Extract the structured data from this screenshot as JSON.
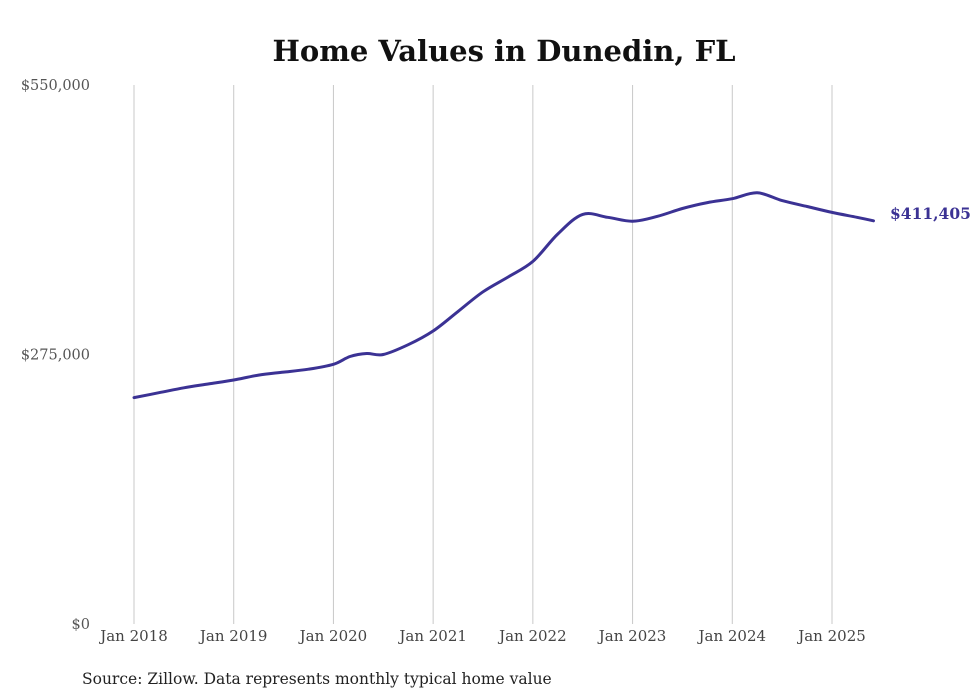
{
  "chart_data": {
    "type": "line",
    "title": "Home Values in Dunedin, FL",
    "xlabel": "",
    "ylabel": "",
    "ylim": [
      0,
      550000
    ],
    "xlim": [
      "2018-01",
      "2025-06"
    ],
    "yticks": [
      0,
      275000,
      550000
    ],
    "ytick_labels": [
      "$0",
      "$275,000",
      "$550,000"
    ],
    "xticks": [
      "2018-01",
      "2019-01",
      "2020-01",
      "2021-01",
      "2022-01",
      "2023-01",
      "2024-01",
      "2025-01"
    ],
    "xtick_labels": [
      "Jan 2018",
      "Jan 2019",
      "Jan 2020",
      "Jan 2021",
      "Jan 2022",
      "Jan 2023",
      "Jan 2024",
      "Jan 2025"
    ],
    "grid": "vertical",
    "color": "#3b3294",
    "end_label": "$411,405",
    "series": [
      {
        "x": [
          "2018-01",
          "2018-04",
          "2018-07",
          "2018-10",
          "2019-01",
          "2019-04",
          "2019-07",
          "2019-10",
          "2020-01",
          "2020-03",
          "2020-05",
          "2020-07",
          "2020-10",
          "2021-01",
          "2021-04",
          "2021-07",
          "2021-10",
          "2022-01",
          "2022-04",
          "2022-07",
          "2022-10",
          "2023-01",
          "2023-04",
          "2023-07",
          "2023-10",
          "2024-01",
          "2024-04",
          "2024-07",
          "2024-10",
          "2025-01",
          "2025-04",
          "2025-06"
        ],
        "y": [
          231000,
          236000,
          241000,
          245000,
          249000,
          254000,
          257000,
          260000,
          265000,
          273000,
          276000,
          275000,
          285000,
          299000,
          319000,
          339000,
          354000,
          370000,
          398000,
          418000,
          415000,
          411000,
          416000,
          424000,
          430000,
          434000,
          440000,
          432000,
          426000,
          420000,
          415000,
          411405
        ]
      }
    ]
  },
  "source_note": "Source: Zillow. Data represents monthly typical home value"
}
